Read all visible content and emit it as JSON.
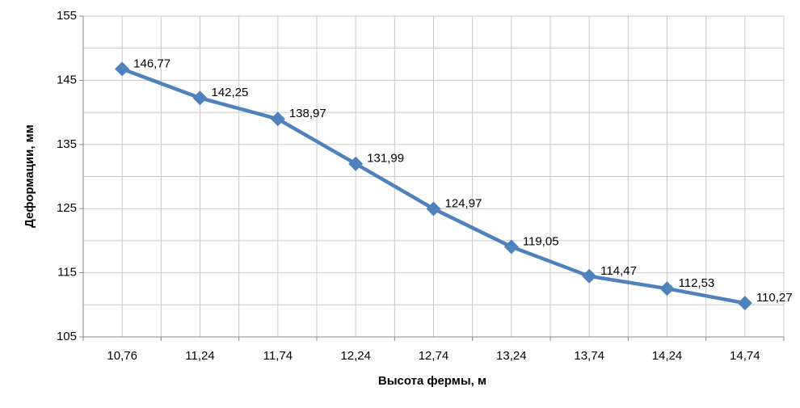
{
  "chart_data": {
    "type": "line",
    "x_label": "Высота фермы, м",
    "y_label": "Деформации, мм",
    "categories": [
      "10,76",
      "11,24",
      "11,74",
      "12,24",
      "12,74",
      "13,24",
      "13,74",
      "14,24",
      "14,74"
    ],
    "series": [
      {
        "name": "Деформации",
        "color": "#4f81bd",
        "values": [
          146.77,
          142.25,
          138.97,
          131.99,
          124.97,
          119.05,
          114.47,
          112.53,
          110.27
        ],
        "value_labels": [
          "146,77",
          "142,25",
          "138,97",
          "131,99",
          "124,97",
          "119,05",
          "114,47",
          "112,53",
          "110,27"
        ]
      }
    ],
    "ylim": [
      105,
      155
    ],
    "yticks": [
      105,
      115,
      125,
      135,
      145,
      155
    ],
    "yminorticks": [
      110,
      120,
      130,
      140,
      150
    ],
    "grid": true
  }
}
